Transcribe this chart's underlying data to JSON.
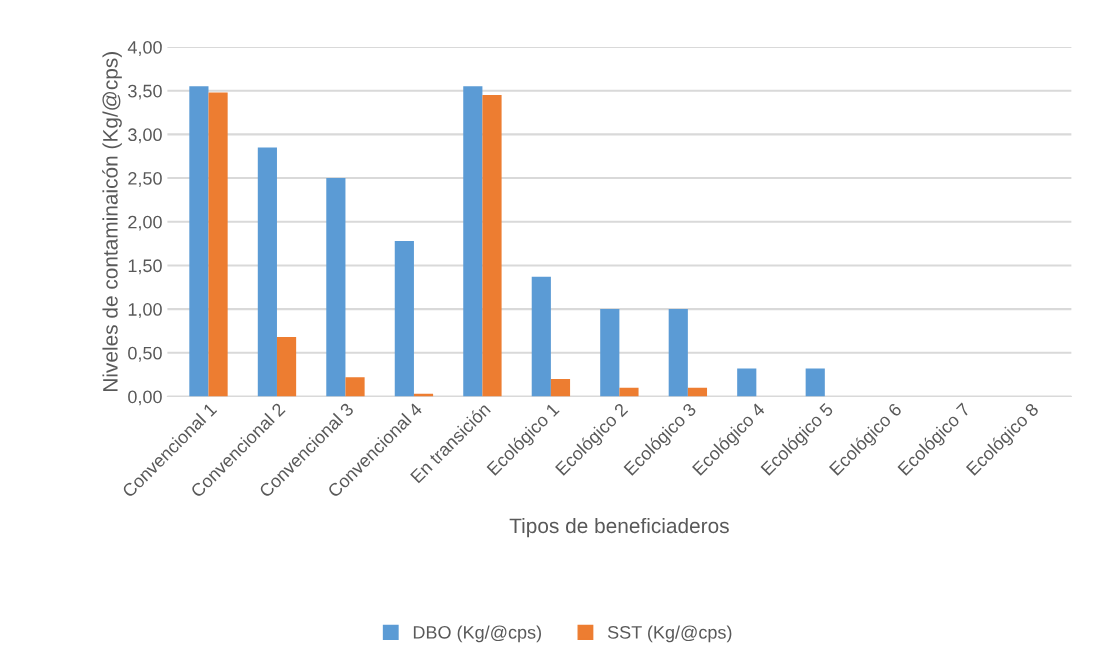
{
  "chart_data": {
    "type": "bar",
    "xlabel": "Tipos de beneficiaderos",
    "ylabel": "Niveles de contaminaicón (Kg/@cps)",
    "categories": [
      "Convencional 1",
      "Convencional 2",
      "Convencional 3",
      "Convencional 4",
      "En transición",
      "Ecológico 1",
      "Ecológico 2",
      "Ecológico 3",
      "Ecológico 4",
      "Ecológico 5",
      "Ecológico 6",
      "Ecológico 7",
      "Ecológico 8"
    ],
    "series": [
      {
        "name": "DBO (Kg/@cps)",
        "color": "#5b9bd5",
        "values": [
          3.55,
          2.85,
          2.5,
          1.78,
          3.55,
          1.37,
          1.0,
          1.0,
          0.32,
          0.32,
          0,
          0,
          0
        ]
      },
      {
        "name": "SST (Kg/@cps)",
        "color": "#ed7d31",
        "values": [
          3.48,
          0.68,
          0.22,
          0.03,
          3.45,
          0.2,
          0.1,
          0.1,
          0,
          0,
          0,
          0,
          0
        ]
      }
    ],
    "ylim": [
      0,
      4
    ],
    "yticks": [
      {
        "value": 0,
        "label": "0,00"
      },
      {
        "value": 0.5,
        "label": "0,50"
      },
      {
        "value": 1,
        "label": "1,00"
      },
      {
        "value": 1.5,
        "label": "1,50"
      },
      {
        "value": 2,
        "label": "2,00"
      },
      {
        "value": 2.5,
        "label": "2,50"
      },
      {
        "value": 3,
        "label": "3,00"
      },
      {
        "value": 3.5,
        "label": "3,50"
      },
      {
        "value": 4,
        "label": "4,00"
      }
    ],
    "grid": "y",
    "legend": "bottom"
  }
}
